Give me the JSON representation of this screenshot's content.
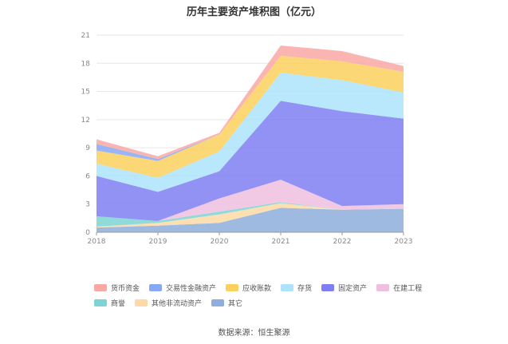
{
  "chart_data": {
    "type": "area",
    "stacked": true,
    "title": "历年主要资产堆积图（亿元）",
    "x": [
      "2018",
      "2019",
      "2020",
      "2021",
      "2022",
      "2023"
    ],
    "ylim": [
      0,
      21
    ],
    "yticks": [
      0,
      3,
      6,
      9,
      12,
      15,
      18,
      21
    ],
    "grid": true,
    "legend_position": "bottom",
    "series": [
      {
        "name": "其它",
        "color": "#8eaedb",
        "values": [
          0.5,
          0.7,
          1.0,
          2.6,
          2.4,
          2.5
        ]
      },
      {
        "name": "其他非流动资产",
        "color": "#fcd9a6",
        "values": [
          0.1,
          0.3,
          0.9,
          0.5,
          0.0,
          0.0
        ]
      },
      {
        "name": "商誉",
        "color": "#7dd4d4",
        "values": [
          1.1,
          0.2,
          0.3,
          0.1,
          0.0,
          0.0
        ]
      },
      {
        "name": "在建工程",
        "color": "#f0bfe0",
        "values": [
          0.0,
          0.0,
          1.4,
          2.4,
          0.4,
          0.5
        ]
      },
      {
        "name": "固定资产",
        "color": "#7f7ff3",
        "values": [
          4.3,
          3.1,
          2.9,
          8.4,
          10.1,
          9.1
        ]
      },
      {
        "name": "存货",
        "color": "#ade3fc",
        "values": [
          1.3,
          1.5,
          2.1,
          3.0,
          3.3,
          2.8
        ]
      },
      {
        "name": "应收账款",
        "color": "#fcd05e",
        "values": [
          1.4,
          1.8,
          1.8,
          1.8,
          2.0,
          2.2
        ]
      },
      {
        "name": "交易性金融资产",
        "color": "#87a8f5",
        "values": [
          0.7,
          0.2,
          0.0,
          0.0,
          0.0,
          0.0
        ]
      },
      {
        "name": "货币资金",
        "color": "#f9a8a4",
        "values": [
          0.5,
          0.3,
          0.2,
          1.1,
          1.1,
          0.6
        ]
      }
    ]
  },
  "legend_order": [
    "货币资金",
    "交易性金融资产",
    "应收账款",
    "存货",
    "固定资产",
    "在建工程",
    "商誉",
    "其他非流动资产",
    "其它"
  ],
  "source": "数据来源：恒生聚源"
}
